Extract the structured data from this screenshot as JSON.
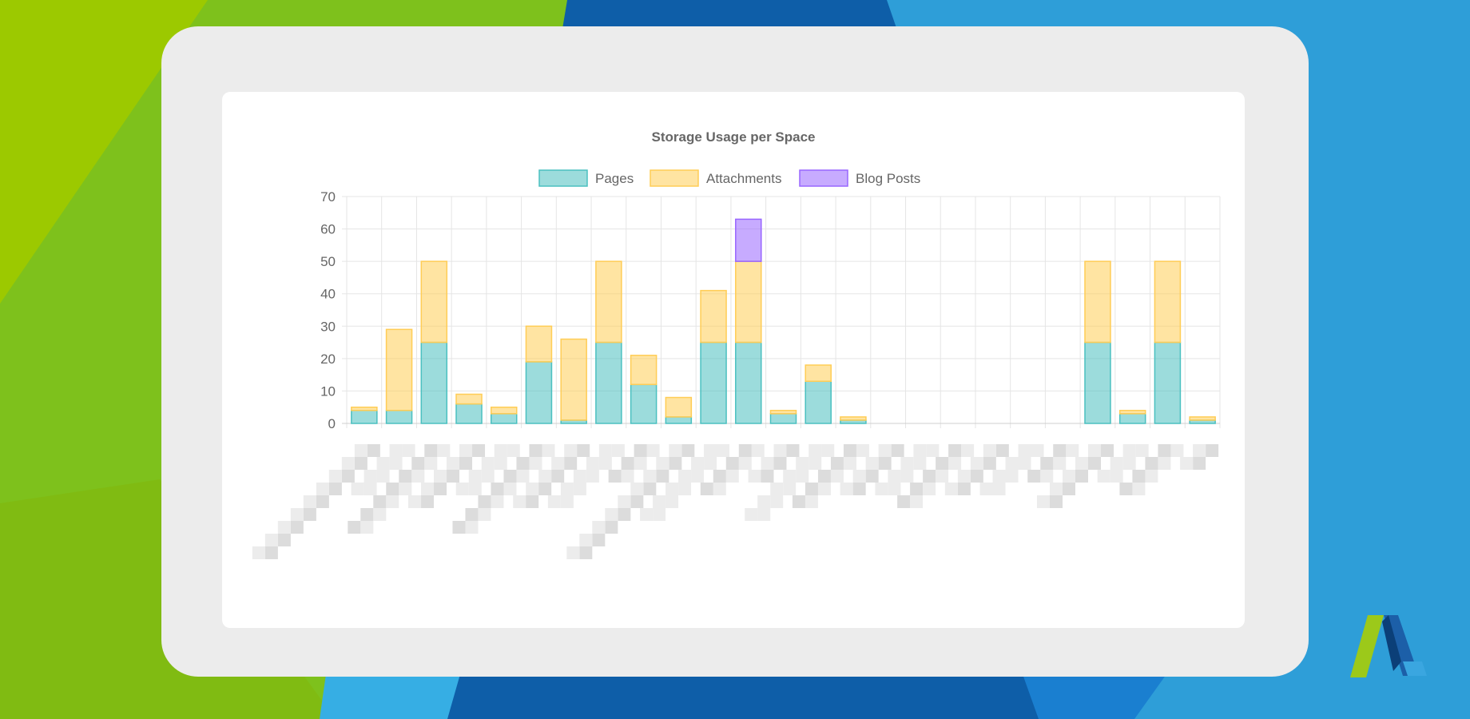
{
  "colors": {
    "pages": "#4bc0c0",
    "attachments": "#ffcd56",
    "blog_posts": "#9966ff",
    "grid": "#e5e5e5",
    "text": "#666666"
  },
  "logo": {
    "name": "brand-logo-icon"
  },
  "chart_data": {
    "type": "bar",
    "stacked": true,
    "title": "Storage Usage per Space",
    "legend_position": "top",
    "grid": true,
    "ylim": [
      0,
      70
    ],
    "yticks": [
      0,
      10,
      20,
      30,
      40,
      50,
      60,
      70
    ],
    "category_labels_legible": false,
    "category_count": 25,
    "series": [
      {
        "name": "Pages",
        "values": [
          4,
          4,
          25,
          6,
          3,
          19,
          1,
          25,
          12,
          2,
          25,
          25,
          3,
          13,
          1,
          0,
          0,
          0,
          0,
          0,
          0,
          25,
          3,
          25,
          1
        ]
      },
      {
        "name": "Attachments",
        "values": [
          1,
          25,
          25,
          3,
          2,
          11,
          25,
          25,
          9,
          6,
          16,
          25,
          1,
          5,
          1,
          0,
          0,
          0,
          0,
          0,
          0,
          25,
          1,
          25,
          1
        ]
      },
      {
        "name": "Blog Posts",
        "values": [
          0,
          0,
          0,
          0,
          0,
          0,
          0,
          0,
          0,
          0,
          0,
          13,
          0,
          0,
          0,
          0,
          0,
          0,
          0,
          0,
          0,
          0,
          0,
          0,
          0
        ]
      }
    ]
  }
}
